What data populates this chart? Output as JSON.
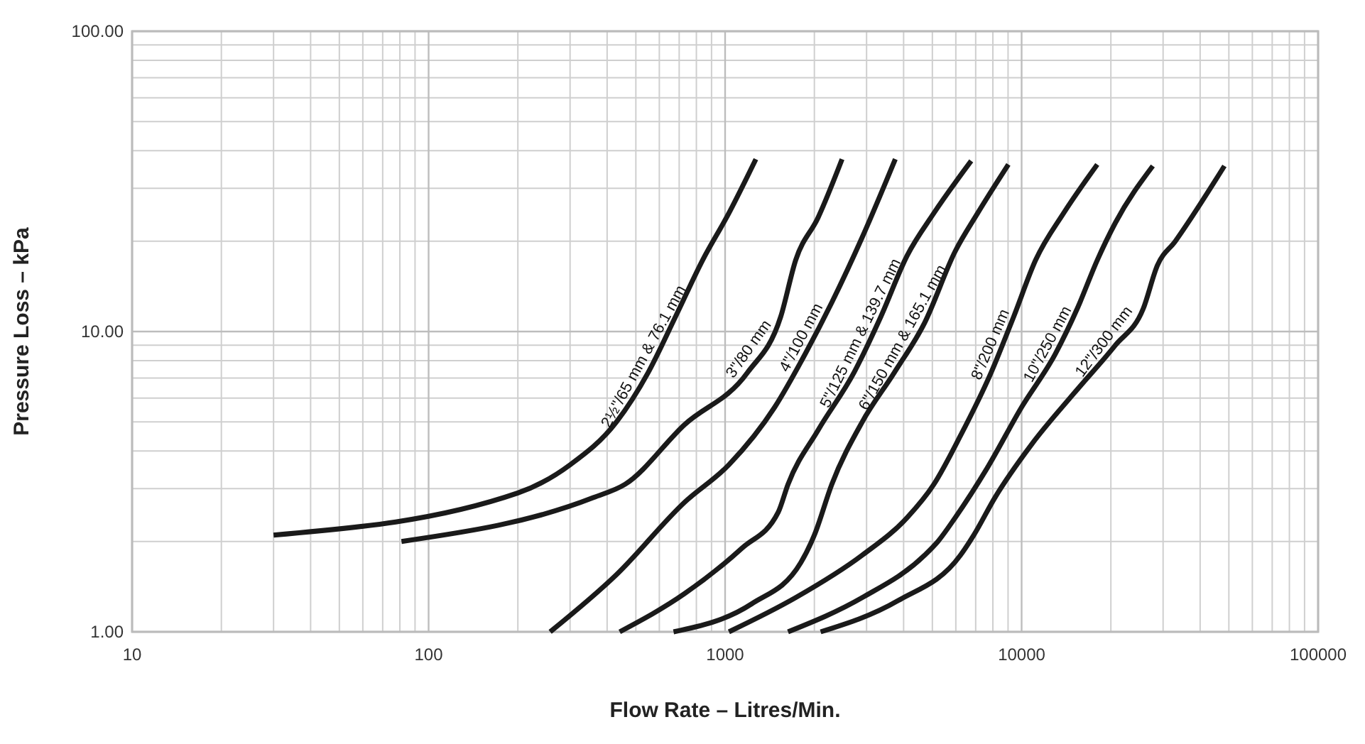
{
  "chart_data": {
    "type": "line",
    "xlabel": "Flow Rate – Litres/Min.",
    "ylabel": "Pressure Loss – kPa",
    "log": "xy",
    "xlim": [
      10,
      100000
    ],
    "ylim": [
      1,
      100
    ],
    "xticks": [
      10,
      100,
      1000,
      10000,
      100000
    ],
    "yticks": [
      {
        "value": 1,
        "label": "1.00"
      },
      {
        "value": 10,
        "label": "10.00"
      },
      {
        "value": 100,
        "label": "100.00"
      }
    ],
    "grid": true,
    "legend": false,
    "marker": "none",
    "line_style": "solid",
    "series": [
      {
        "name": "2½\"/65 mm & 76.1 mm",
        "color": "#1a1a1a",
        "x": [
          30,
          200,
          300,
          430,
          550,
          680,
          840,
          1030,
          1270
        ],
        "values": [
          2.1,
          2.9,
          3.6,
          5.0,
          7.3,
          11.2,
          17.3,
          24.8,
          37.5
        ]
      },
      {
        "name": "3\"/80 mm",
        "color": "#1a1a1a",
        "x": [
          81,
          360,
          460,
          730,
          1190,
          1540,
          1730,
          2060,
          2480
        ],
        "values": [
          2.0,
          2.8,
          3.1,
          4.9,
          7.3,
          11.2,
          17.3,
          24,
          37.5
        ]
      },
      {
        "name": "4\"/100 mm",
        "color": "#1a1a1a",
        "x": [
          257,
          430,
          730,
          1030,
          1470,
          1860,
          2290,
          2900,
          3750
        ],
        "values": [
          1,
          1.55,
          2.7,
          3.6,
          5.6,
          8.4,
          12.5,
          20.6,
          37.5
        ]
      },
      {
        "name": "5\"/125 mm & 139.7 mm",
        "color": "#1a1a1a",
        "x": [
          441,
          730,
          1140,
          1510,
          1630,
          2060,
          2720,
          3350,
          4110,
          5060,
          6760
        ],
        "values": [
          1,
          1.34,
          1.9,
          2.5,
          3.1,
          4.7,
          7.3,
          11.2,
          17.9,
          24.8,
          37
        ]
      },
      {
        "name": "6\"/150 mm & 165.1 mm",
        "color": "#1a1a1a",
        "x": [
          670,
          1230,
          1800,
          2000,
          2290,
          2900,
          3720,
          4710,
          5970,
          7110,
          9020
        ],
        "values": [
          1,
          1.24,
          1.7,
          2.1,
          3.1,
          5.0,
          7.3,
          10.7,
          18.5,
          24.8,
          36
        ]
      },
      {
        "name": "8\"/200 mm",
        "color": "#1a1a1a",
        "x": [
          1030,
          1730,
          2900,
          4110,
          5060,
          6220,
          7890,
          9400,
          11150,
          13860,
          18000
        ],
        "values": [
          1,
          1.3,
          1.8,
          2.4,
          3.1,
          4.5,
          7.3,
          11.2,
          17.3,
          24.8,
          36
        ]
      },
      {
        "name": "10\"/250 mm",
        "color": "#1a1a1a",
        "x": [
          1630,
          2900,
          4710,
          5220,
          5970,
          7640,
          10000,
          12970,
          15450,
          18000,
          20700,
          27700
        ],
        "values": [
          1,
          1.3,
          1.8,
          2.0,
          2.4,
          3.5,
          5.6,
          8.4,
          12,
          17.3,
          23,
          35.6
        ]
      },
      {
        "name": "12\"/300 mm",
        "color": "#1a1a1a",
        "x": [
          2100,
          3830,
          6220,
          6900,
          8130,
          10790,
          14960,
          20700,
          25700,
          28700,
          33000,
          48300
        ],
        "values": [
          1,
          1.27,
          1.8,
          2.1,
          2.8,
          4.2,
          6.2,
          9.0,
          11.9,
          16.6,
          20,
          35.6
        ]
      }
    ]
  }
}
